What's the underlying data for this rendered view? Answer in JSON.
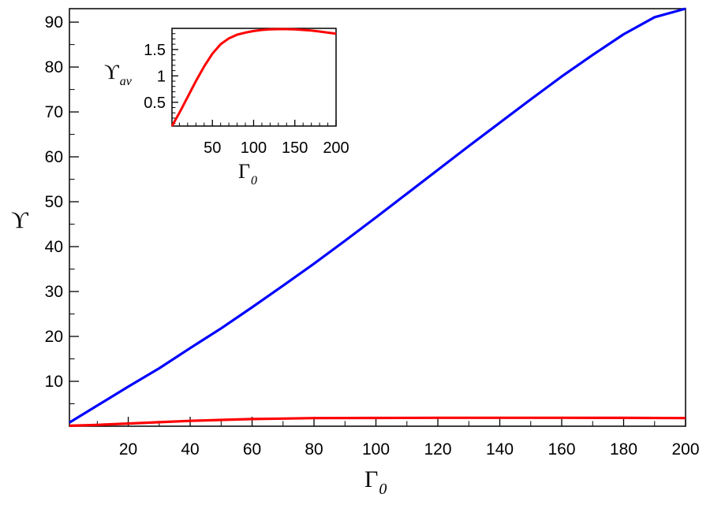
{
  "chart_data": [
    {
      "type": "line",
      "xlabel": "Γ",
      "xlabel_sub": "0",
      "ylabel": "ϒ",
      "xlim": [
        1,
        200
      ],
      "ylim": [
        0,
        93
      ],
      "xticks": [
        "20",
        "40",
        "60",
        "80",
        "100",
        "120",
        "140",
        "160",
        "180",
        "200"
      ],
      "yticks": [
        "10",
        "20",
        "30",
        "40",
        "50",
        "60",
        "70",
        "80",
        "90"
      ],
      "grid": false,
      "series": [
        {
          "color": "#0000ff",
          "x": [
            1,
            10,
            20,
            30,
            40,
            50,
            60,
            70,
            80,
            90,
            100,
            110,
            120,
            130,
            140,
            150,
            160,
            170,
            180,
            190,
            200
          ],
          "values": [
            0.8,
            4.6,
            8.8,
            12.9,
            17.4,
            21.8,
            26.5,
            31.3,
            36.2,
            41.3,
            46.5,
            51.8,
            57.1,
            62.4,
            67.6,
            72.8,
            77.9,
            82.7,
            87.3,
            91.1,
            93.0
          ]
        },
        {
          "color": "#ff0000",
          "x": [
            1,
            10,
            20,
            30,
            40,
            50,
            60,
            70,
            80,
            100,
            120,
            140,
            160,
            180,
            200
          ],
          "values": [
            0.1,
            0.3,
            0.6,
            0.9,
            1.2,
            1.4,
            1.6,
            1.7,
            1.8,
            1.85,
            1.88,
            1.88,
            1.87,
            1.86,
            1.8
          ]
        }
      ]
    },
    {
      "type": "line",
      "xlabel": "Γ",
      "xlabel_sub": "0",
      "ylabel": "ϒ",
      "ylabel_sub": "av",
      "xlim": [
        1,
        200
      ],
      "ylim": [
        0.05,
        1.9
      ],
      "xticks": [
        "50",
        "100",
        "150",
        "200"
      ],
      "yticks": [
        "0.5",
        "1",
        "1.5"
      ],
      "grid": false,
      "series": [
        {
          "color": "#ff0000",
          "x": [
            1,
            10,
            20,
            30,
            40,
            50,
            60,
            70,
            80,
            90,
            100,
            110,
            120,
            130,
            140,
            150,
            160,
            170,
            180,
            190,
            200
          ],
          "values": [
            0.05,
            0.3,
            0.6,
            0.9,
            1.18,
            1.42,
            1.6,
            1.71,
            1.78,
            1.82,
            1.85,
            1.87,
            1.88,
            1.885,
            1.885,
            1.88,
            1.87,
            1.86,
            1.84,
            1.82,
            1.8
          ]
        }
      ]
    }
  ]
}
